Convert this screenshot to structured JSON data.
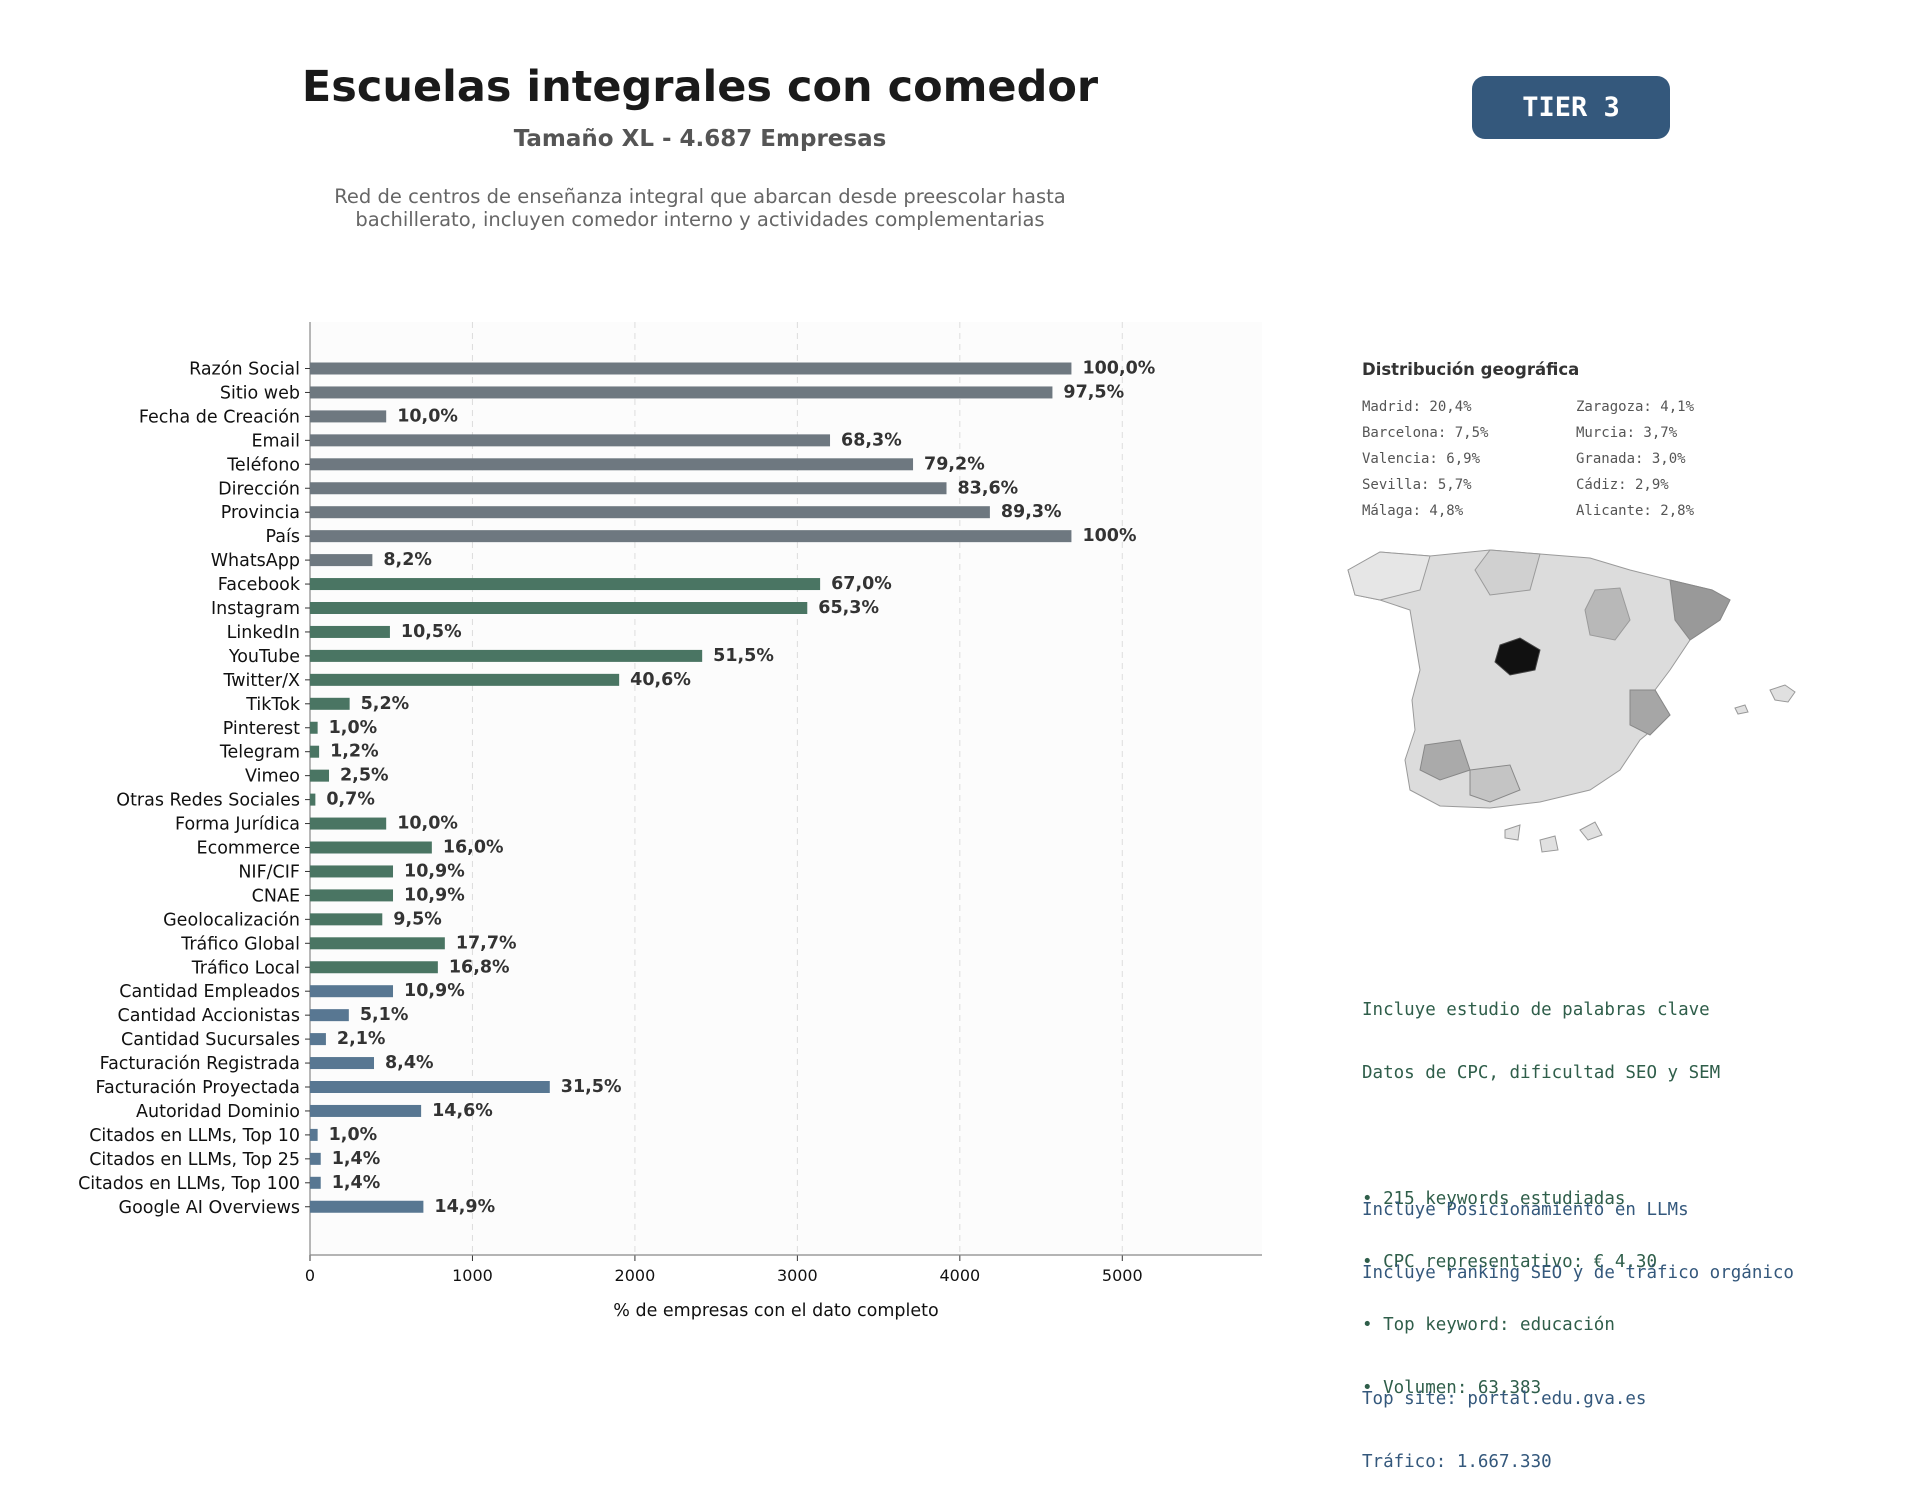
{
  "header": {
    "title": "Escuelas integrales con comedor",
    "subtitle": "Tamaño XL - 4.687 Empresas",
    "description": "Red de centros de enseñanza integral que abarcan desde preescolar hasta bachillerato, incluyen comedor interno y actividades complementarias",
    "tier_badge": "TIER 3"
  },
  "colors": {
    "gray": "#6e7880",
    "green": "#4a7563",
    "blue": "#587792",
    "badge": "#34587c"
  },
  "chart_data": {
    "type": "bar",
    "orientation": "horizontal",
    "title": "",
    "xlabel": "% de empresas con el dato completo",
    "ylabel": "",
    "xlim": [
      0,
      5860
    ],
    "xticks": [
      0,
      1000,
      2000,
      3000,
      4000,
      5000
    ],
    "grid": "vertical-dashed",
    "series": [
      {
        "categories": [
          "Razón Social",
          "Sitio web",
          "Fecha de Creación",
          "Email",
          "Teléfono",
          "Dirección",
          "Provincia",
          "País",
          "WhatsApp",
          "Facebook",
          "Instagram",
          "LinkedIn",
          "YouTube",
          "Twitter/X",
          "TikTok",
          "Pinterest",
          "Telegram",
          "Vimeo",
          "Otras Redes Sociales",
          "Forma Jurídica",
          "Ecommerce",
          "NIF/CIF",
          "CNAE",
          "Geolocalización",
          "Tráfico Global",
          "Tráfico Local",
          "Cantidad Empleados",
          "Cantidad Accionistas",
          "Cantidad Sucursales",
          "Facturación Registrada",
          "Facturación Proyectada",
          "Autoridad Dominio",
          "Citados en LLMs, Top 10",
          "Citados en LLMs, Top 25",
          "Citados en LLMs, Top 100",
          "Google AI Overviews"
        ],
        "values": [
          4687,
          4570,
          469,
          3201,
          3712,
          3918,
          4185,
          4687,
          384,
          3140,
          3061,
          492,
          2414,
          1903,
          244,
          47,
          56,
          117,
          33,
          469,
          750,
          511,
          511,
          445,
          830,
          787,
          511,
          239,
          98,
          394,
          1476,
          684,
          47,
          66,
          66,
          698
        ],
        "labels": [
          "100,0%",
          "97,5%",
          "10,0%",
          "68,3%",
          "79,2%",
          "83,6%",
          "89,3%",
          "100%",
          "8,2%",
          "67,0%",
          "65,3%",
          "10,5%",
          "51,5%",
          "40,6%",
          "5,2%",
          "1,0%",
          "1,2%",
          "2,5%",
          "0,7%",
          "10,0%",
          "16,0%",
          "10,9%",
          "10,9%",
          "9,5%",
          "17,7%",
          "16,8%",
          "10,9%",
          "5,1%",
          "2,1%",
          "8,4%",
          "31,5%",
          "14,6%",
          "1,0%",
          "1,4%",
          "1,4%",
          "14,9%"
        ],
        "groups": [
          "gray",
          "gray",
          "gray",
          "gray",
          "gray",
          "gray",
          "gray",
          "gray",
          "gray",
          "green",
          "green",
          "green",
          "green",
          "green",
          "green",
          "green",
          "green",
          "green",
          "green",
          "green",
          "green",
          "green",
          "green",
          "green",
          "green",
          "green",
          "blue",
          "blue",
          "blue",
          "blue",
          "blue",
          "blue",
          "blue",
          "blue",
          "blue",
          "blue"
        ]
      }
    ]
  },
  "geo": {
    "title": "Distribución geográfica",
    "items": [
      "Madrid: 20,4%",
      "Zaragoza: 4,1%",
      "Barcelona: 7,5%",
      "Murcia: 3,7%",
      "Valencia: 6,9%",
      "Granada: 3,0%",
      "Sevilla: 5,7%",
      "Cádiz: 2,9%",
      "Málaga: 4,8%",
      "Alicante: 2,8%"
    ]
  },
  "keywords": {
    "lines": [
      "Incluye estudio de palabras clave",
      "Datos de CPC, dificultad SEO y SEM",
      "",
      "• 215 keywords estudiadas",
      "• CPC representativo: € 4.30",
      "• Top keyword: educación",
      "• Volumen: 63.383"
    ]
  },
  "llm": {
    "lines": [
      "Incluye Posicionamiento en LLMs",
      "Incluye ranking SEO y de tráfico orgánico",
      "",
      "Top site: portal.edu.gva.es",
      "Tráfico: 1.667.330"
    ]
  }
}
